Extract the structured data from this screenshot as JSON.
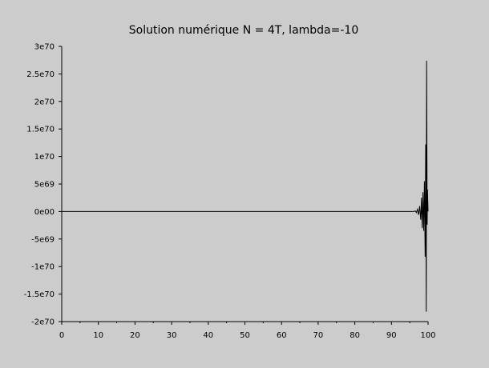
{
  "chart_data": {
    "type": "line",
    "title": "Solution numérique N = 4T, lambda=-10",
    "xlabel": "",
    "ylabel": "",
    "xlim": [
      0,
      100
    ],
    "ylim": [
      -2e+70,
      3e+70
    ],
    "grid": false,
    "x_ticks": [
      0,
      10,
      20,
      30,
      40,
      50,
      60,
      70,
      80,
      90,
      100
    ],
    "x_tick_labels": [
      "0",
      "10",
      "20",
      "30",
      "40",
      "50",
      "60",
      "70",
      "80",
      "90",
      "100"
    ],
    "y_ticks": [
      3e+70,
      2.5e+70,
      2e+70,
      1.5e+70,
      1e+70,
      5e+69,
      0,
      -5e+69,
      -1e+70,
      -1.5e+70,
      -2e+70
    ],
    "y_tick_labels": [
      "3e70",
      "2.5e70",
      "2e70",
      "1.5e70",
      "1e70",
      "5e69",
      "0e00",
      "-5e69",
      "-1e70",
      "-1.5e70",
      "-2e70"
    ],
    "series": [
      {
        "color": "#000000",
        "x": [
          0,
          96.0,
          96.5,
          96.8,
          97.1,
          97.4,
          97.7,
          98.0,
          98.2,
          98.4,
          98.6,
          98.8,
          99.0,
          99.2,
          99.35,
          99.5,
          99.6,
          99.75,
          99.85,
          100.0
        ],
        "y": [
          0,
          0,
          1e+68,
          -2e+68,
          4e+68,
          -6e+68,
          1e+69,
          -1.5e+69,
          2.5e+69,
          -3e+69,
          3.5e+69,
          -3.5e+69,
          5.5e+69,
          -8.2e+69,
          1.22e+70,
          -1.82e+70,
          2.74e+70,
          -2.4e+69,
          4e+69,
          0
        ]
      }
    ]
  }
}
